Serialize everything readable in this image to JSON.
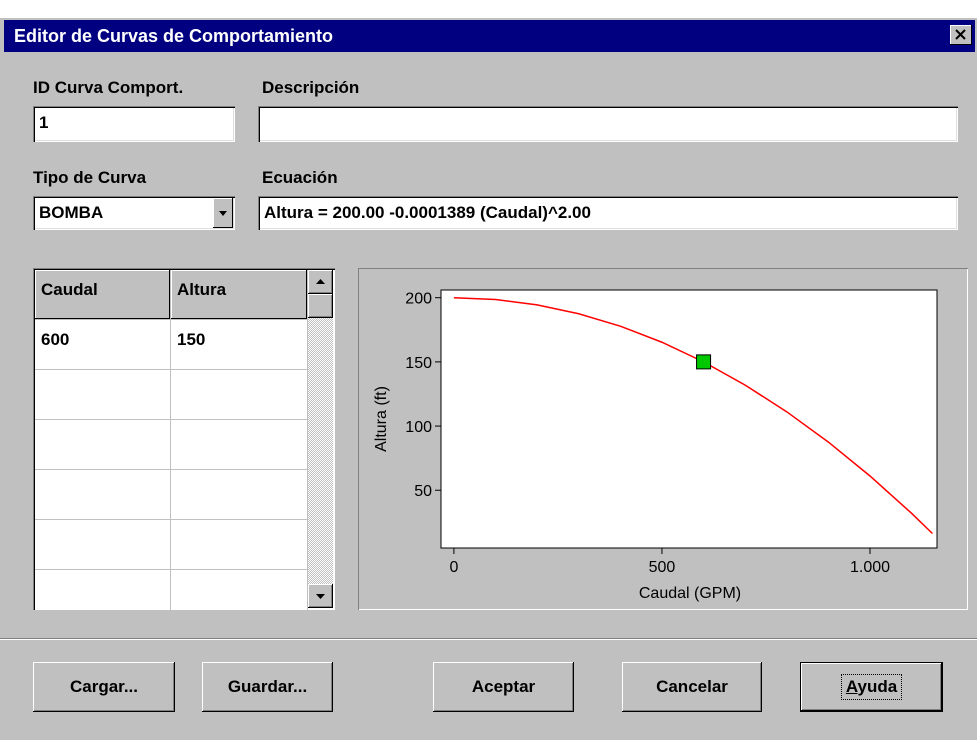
{
  "window": {
    "title": "Editor de Curvas de Comportamiento"
  },
  "fields": {
    "id_label": "ID Curva Comport.",
    "id_value": "1",
    "description_label": "Descripción",
    "description_value": "",
    "type_label": "Tipo de Curva",
    "type_value": "BOMBA",
    "equation_label": "Ecuación",
    "equation_value": "Altura = 200.00 -0.0001389 (Caudal)^2.00"
  },
  "table": {
    "columns": [
      "Caudal",
      "Altura"
    ],
    "rows": [
      [
        600,
        150
      ]
    ]
  },
  "chart": {
    "type": "line",
    "x_label": "Caudal (GPM)",
    "y_label": "Altura (ft)",
    "xlim": [
      -31,
      1161
    ],
    "ylim": [
      5,
      206
    ],
    "xticks": [
      0,
      500,
      {
        "value": 1000,
        "label": "1.000"
      }
    ],
    "yticks": [
      50,
      100,
      150,
      200
    ],
    "series": [
      {
        "color": "#ff0000",
        "x": [
          0,
          100,
          200,
          300,
          400,
          500,
          600,
          700,
          800,
          900,
          1000,
          1100,
          1150
        ],
        "values": [
          200,
          198.6,
          194.4,
          187.5,
          177.8,
          165.3,
          150,
          131.9,
          111.1,
          87.5,
          61.1,
          32,
          16.3
        ]
      },
      {
        "color": "#00c800",
        "x": [
          600
        ],
        "values": [
          150
        ]
      }
    ]
  },
  "buttons": [
    "Cargar...",
    "Guardar...",
    "Aceptar",
    "Cancelar",
    "Ayuda"
  ]
}
